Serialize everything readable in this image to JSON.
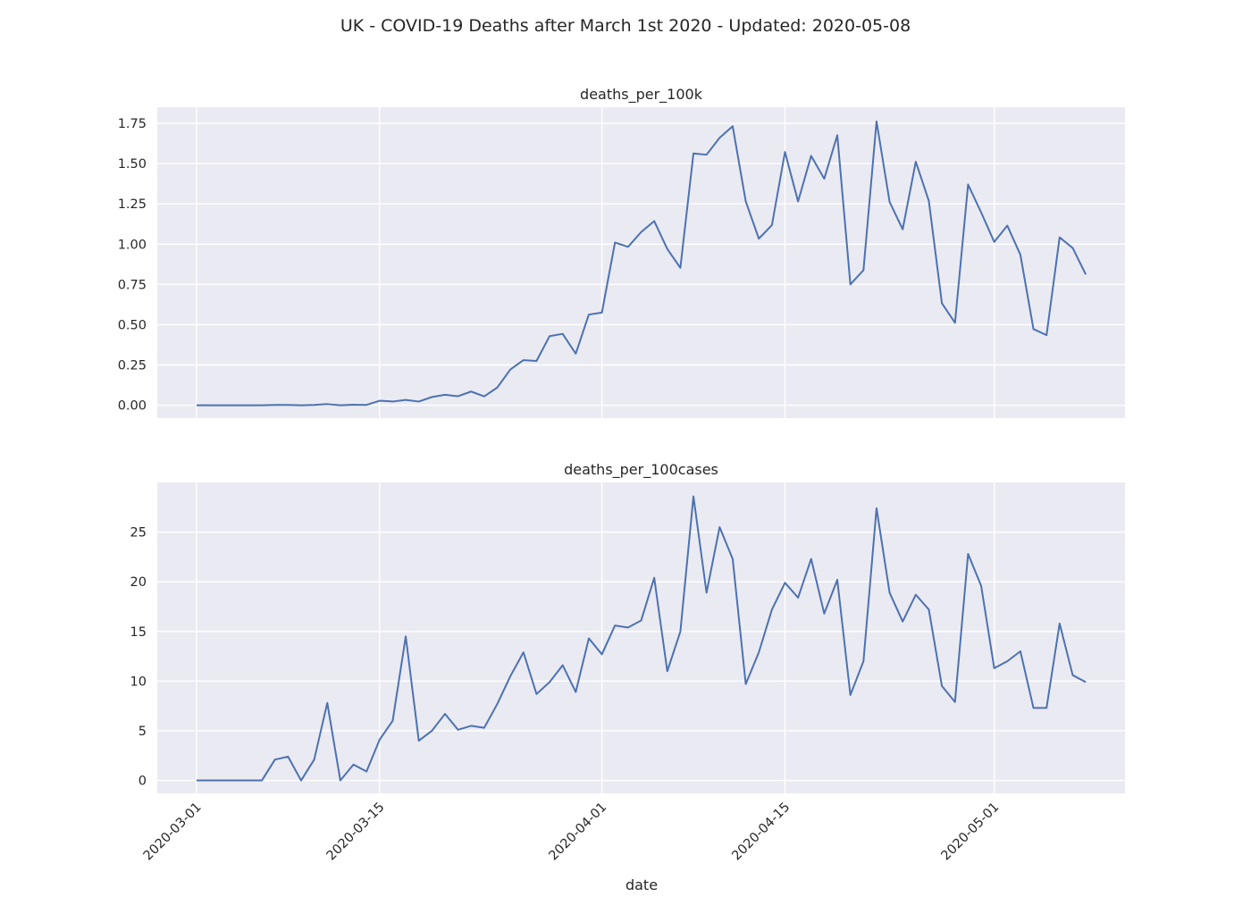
{
  "title": "UK - COVID-19 Deaths after March 1st 2020 - Updated: 2020-05-08",
  "xlabel": "date",
  "chart_data": [
    {
      "type": "line",
      "title": "deaths_per_100k",
      "xlabel": "date",
      "ylabel": "",
      "x_start": "2020-03-01",
      "x_end": "2020-05-08",
      "xlim": [
        "2020-02-27",
        "2020-05-11"
      ],
      "ylim": [
        -0.08,
        1.85
      ],
      "y_ticks": [
        0.0,
        0.25,
        0.5,
        0.75,
        1.0,
        1.25,
        1.5,
        1.75
      ],
      "y_tick_labels": [
        "0.00",
        "0.25",
        "0.50",
        "0.75",
        "1.00",
        "1.25",
        "1.50",
        "1.75"
      ],
      "x_ticks": [
        "2020-03-01",
        "2020-03-15",
        "2020-04-01",
        "2020-04-15",
        "2020-05-01"
      ],
      "grid": true,
      "color": "#4c72b0",
      "values": [
        0,
        0,
        0,
        0,
        0,
        0,
        0.002,
        0.002,
        0,
        0.002,
        0.007,
        0,
        0.003,
        0.002,
        0.028,
        0.023,
        0.033,
        0.023,
        0.051,
        0.065,
        0.056,
        0.085,
        0.055,
        0.11,
        0.222,
        0.28,
        0.275,
        0.429,
        0.443,
        0.32,
        0.563,
        0.575,
        1.01,
        0.983,
        1.075,
        1.143,
        0.97,
        0.853,
        1.563,
        1.555,
        1.66,
        1.732,
        1.265,
        1.034,
        1.118,
        1.572,
        1.265,
        1.548,
        1.406,
        1.676,
        0.75,
        0.838,
        1.762,
        1.262,
        1.092,
        1.512,
        1.268,
        0.633,
        0.512,
        1.37,
        1.197,
        1.014,
        1.115,
        0.934,
        0.473,
        0.435,
        1.042,
        0.976,
        0.812
      ]
    },
    {
      "type": "line",
      "title": "deaths_per_100cases",
      "xlabel": "date",
      "ylabel": "",
      "x_start": "2020-03-01",
      "x_end": "2020-05-08",
      "xlim": [
        "2020-02-27",
        "2020-05-11"
      ],
      "ylim": [
        -1.3,
        30.0
      ],
      "y_ticks": [
        0,
        5,
        10,
        15,
        20,
        25
      ],
      "y_tick_labels": [
        "0",
        "5",
        "10",
        "15",
        "20",
        "25"
      ],
      "x_ticks": [
        "2020-03-01",
        "2020-03-15",
        "2020-04-01",
        "2020-04-15",
        "2020-05-01"
      ],
      "grid": true,
      "color": "#4c72b0",
      "values": [
        0,
        0,
        0,
        0,
        0,
        0,
        2.1,
        2.4,
        0,
        2.1,
        7.8,
        0,
        1.6,
        0.9,
        4.1,
        6.0,
        14.5,
        4.0,
        5.0,
        6.7,
        5.1,
        5.5,
        5.3,
        7.7,
        10.5,
        12.9,
        8.7,
        9.9,
        11.6,
        8.9,
        14.3,
        12.7,
        15.6,
        15.4,
        16.1,
        20.4,
        11.0,
        15.0,
        28.6,
        18.9,
        25.5,
        22.3,
        9.7,
        12.9,
        17.2,
        19.9,
        18.4,
        22.3,
        16.8,
        20.2,
        8.6,
        12.0,
        27.4,
        18.9,
        16.0,
        18.7,
        17.2,
        9.5,
        7.9,
        22.8,
        19.6,
        11.3,
        12.0,
        13.0,
        7.3,
        7.3,
        15.8,
        10.6,
        9.9
      ]
    }
  ]
}
